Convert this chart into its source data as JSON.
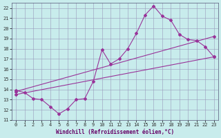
{
  "xlabel": "Windchill (Refroidissement éolien,°C)",
  "xlim": [
    -0.5,
    23.5
  ],
  "ylim": [
    11,
    22.5
  ],
  "xticks": [
    0,
    1,
    2,
    3,
    4,
    5,
    6,
    7,
    8,
    9,
    10,
    11,
    12,
    13,
    14,
    15,
    16,
    17,
    18,
    19,
    20,
    21,
    22,
    23
  ],
  "yticks": [
    11,
    12,
    13,
    14,
    15,
    16,
    17,
    18,
    19,
    20,
    21,
    22
  ],
  "bg_color": "#c8ecec",
  "grid_color": "#9999bb",
  "line_color": "#993399",
  "line1_x": [
    0,
    1,
    2,
    3,
    4,
    5,
    6,
    7,
    8,
    9,
    10,
    11,
    12,
    13,
    14,
    15,
    16,
    17,
    18,
    19,
    20,
    21,
    22,
    23
  ],
  "line1_y": [
    13.9,
    13.7,
    13.1,
    13.0,
    12.3,
    11.6,
    12.1,
    13.0,
    13.1,
    14.8,
    17.9,
    16.5,
    17.0,
    18.0,
    19.5,
    21.3,
    22.2,
    21.2,
    20.8,
    19.4,
    18.9,
    18.8,
    18.2,
    17.2
  ],
  "line2_x": [
    0,
    23
  ],
  "line2_y": [
    13.8,
    19.2
  ],
  "line3_x": [
    0,
    23
  ],
  "line3_y": [
    13.5,
    17.2
  ]
}
